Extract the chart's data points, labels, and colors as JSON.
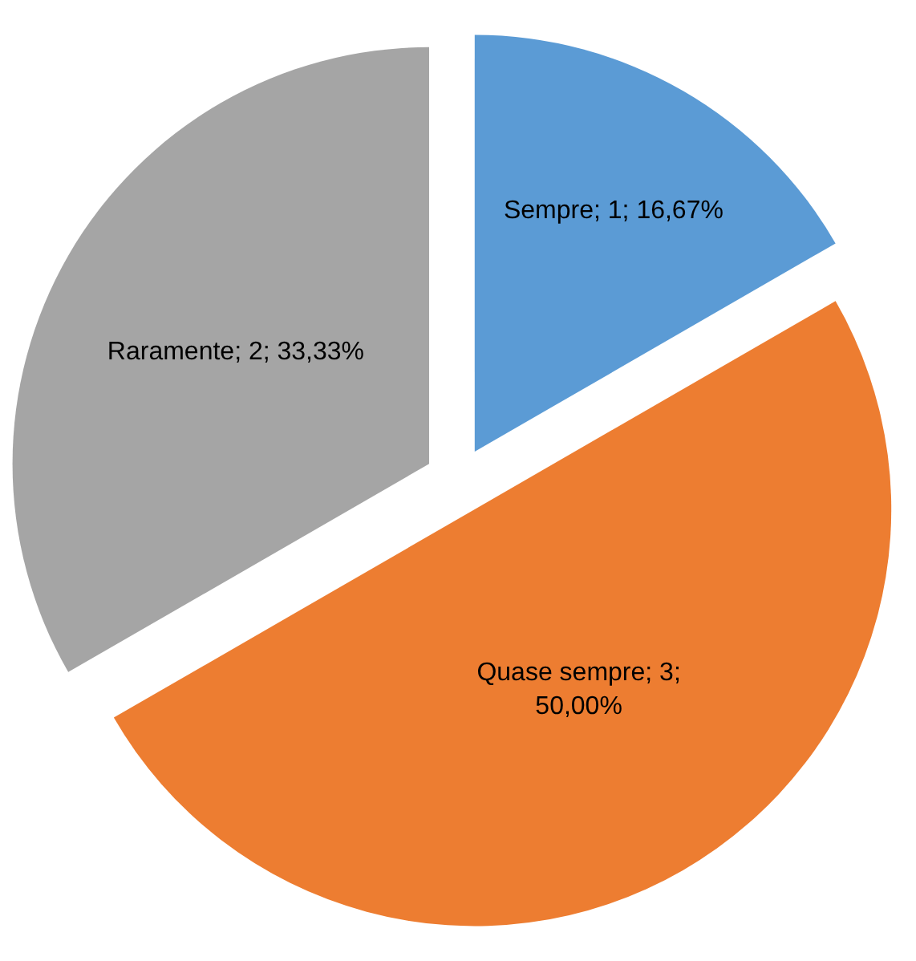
{
  "chart_data": {
    "type": "pie",
    "categories": [
      "Sempre",
      "Quase sempre",
      "Raramente"
    ],
    "values": [
      16.67,
      50.0,
      33.33
    ],
    "colors": [
      "#5b9bd5",
      "#ed7d31",
      "#a5a5a5"
    ],
    "value_labels": [
      "1; 16,67%",
      "3; 50,00%",
      "2; 33,33%"
    ],
    "legend": false
  }
}
